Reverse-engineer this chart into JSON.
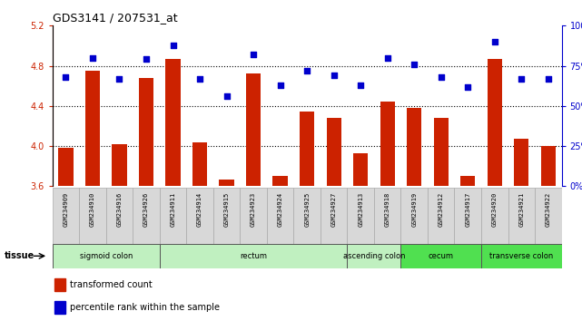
{
  "title": "GDS3141 / 207531_at",
  "samples": [
    "GSM234909",
    "GSM234910",
    "GSM234916",
    "GSM234926",
    "GSM234911",
    "GSM234914",
    "GSM234915",
    "GSM234923",
    "GSM234924",
    "GSM234925",
    "GSM234927",
    "GSM234913",
    "GSM234918",
    "GSM234919",
    "GSM234912",
    "GSM234917",
    "GSM234920",
    "GSM234921",
    "GSM234922"
  ],
  "bar_values": [
    3.98,
    4.75,
    4.02,
    4.68,
    4.87,
    4.04,
    3.67,
    4.72,
    3.7,
    4.34,
    4.28,
    3.93,
    4.44,
    4.38,
    4.28,
    3.7,
    4.87,
    4.07,
    4.0
  ],
  "dot_values": [
    68,
    80,
    67,
    79,
    88,
    67,
    56,
    82,
    63,
    72,
    69,
    63,
    80,
    76,
    68,
    62,
    90,
    67,
    67
  ],
  "ylim_left": [
    3.6,
    5.2
  ],
  "ylim_right": [
    0,
    100
  ],
  "yticks_left": [
    3.6,
    4.0,
    4.4,
    4.8,
    5.2
  ],
  "yticks_right": [
    0,
    25,
    50,
    75,
    100
  ],
  "hlines": [
    4.0,
    4.4,
    4.8
  ],
  "bar_color": "#cc2200",
  "dot_color": "#0000cc",
  "bar_bottom": 3.6,
  "tissue_groups": [
    {
      "label": "sigmoid colon",
      "start": 0,
      "end": 4,
      "color": "#c0f0c0"
    },
    {
      "label": "rectum",
      "start": 4,
      "end": 11,
      "color": "#c0f0c0"
    },
    {
      "label": "ascending colon",
      "start": 11,
      "end": 13,
      "color": "#c0f0c0"
    },
    {
      "label": "cecum",
      "start": 13,
      "end": 16,
      "color": "#50e050"
    },
    {
      "label": "transverse colon",
      "start": 16,
      "end": 19,
      "color": "#50e050"
    }
  ],
  "legend_red": "transformed count",
  "legend_blue": "percentile rank within the sample",
  "tissue_label": "tissue",
  "right_axis_color": "#0000cc",
  "left_axis_color": "#cc2200",
  "tick_label_bg": "#d8d8d8",
  "tick_border_color": "#aaaaaa"
}
